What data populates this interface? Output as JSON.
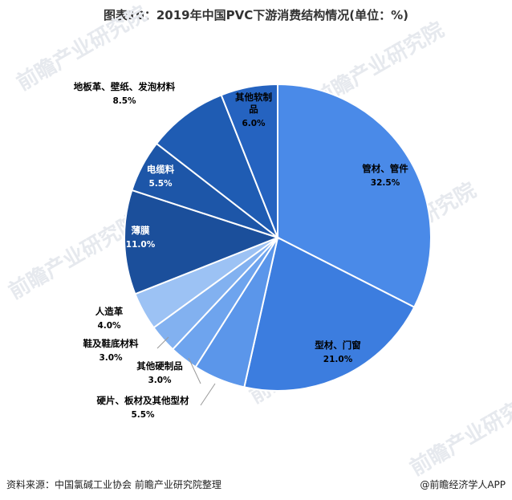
{
  "title": "图表10：2019年中国PVC下游消费结构情况(单位：%)",
  "source": "资料来源：中国氯碱工业协会 前瞻产业研究院整理",
  "brand": "@前瞻经济学人APP",
  "watermark": "前瞻产业研究院",
  "chart_data": {
    "type": "pie",
    "title": "图表10：2019年中国PVC下游消费结构情况(单位：%)",
    "unit": "%",
    "slices": [
      {
        "name": "管材、管件",
        "value": 32.5,
        "label": "32.5%",
        "color": "#4a8ae8"
      },
      {
        "name": "型材、门窗",
        "value": 21.0,
        "label": "21.0%",
        "color": "#3c7ddf"
      },
      {
        "name": "硬片、板材及其他型材",
        "value": 5.5,
        "label": "5.5%",
        "color": "#5b96ea"
      },
      {
        "name": "其他硬制品",
        "value": 3.0,
        "label": "3.0%",
        "color": "#6ea4ee"
      },
      {
        "name": "鞋及鞋底材料",
        "value": 3.0,
        "label": "3.0%",
        "color": "#82b1f0"
      },
      {
        "name": "人造革",
        "value": 4.0,
        "label": "4.0%",
        "color": "#9cc2f4"
      },
      {
        "name": "薄膜",
        "value": 11.0,
        "label": "11.0%",
        "color": "#1b4f9b"
      },
      {
        "name": "电缆料",
        "value": 5.5,
        "label": "5.5%",
        "color": "#1d56a8"
      },
      {
        "name": "地板革、壁纸、发泡材料",
        "value": 8.5,
        "label": "8.5%",
        "color": "#1f5cb3"
      },
      {
        "name": "其他软制品",
        "value": 6.0,
        "label": "6.0%",
        "color": "#2563c0"
      }
    ]
  }
}
